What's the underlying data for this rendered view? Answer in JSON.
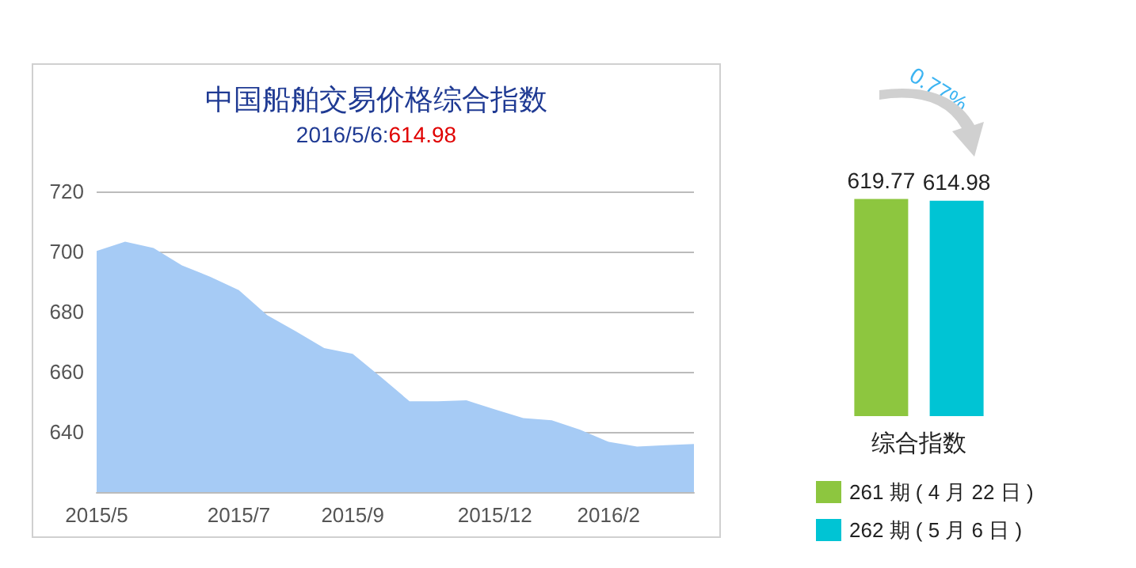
{
  "chart_data": [
    {
      "type": "area",
      "title": "中国船舶交易价格综合指数",
      "subtitle": "2016/5/6:614.98",
      "categories": [
        "2015/5",
        null,
        null,
        null,
        null,
        "2015/7",
        null,
        null,
        null,
        "2015/9",
        null,
        null,
        null,
        null,
        "2015/12",
        null,
        null,
        null,
        "2016/2",
        null,
        null,
        null
      ],
      "values": [
        700.2,
        703.3,
        701.2,
        695.4,
        691.6,
        687.2,
        678.8,
        673.5,
        667.9,
        666,
        658.2,
        650.2,
        650.2,
        650.5,
        647.5,
        644.6,
        643.9,
        640.7,
        636.7,
        635.1,
        635.6,
        636.0
      ],
      "color": "#a6cbf5",
      "ylim": [
        620,
        720
      ],
      "yticks": [
        640,
        660,
        680,
        700,
        720
      ],
      "grid": "y"
    },
    {
      "type": "bar",
      "categories": [
        "综合指数"
      ],
      "series": [
        {
          "name": "261 期 ( 4 月 22 日 )",
          "color": "#8dc63f",
          "values": [
            619.77
          ]
        },
        {
          "name": "262 期 ( 5 月 6 日 )",
          "color": "#00c4d4",
          "values": [
            614.98
          ]
        }
      ],
      "data_labels": true,
      "legend": "bottom",
      "annotations": [
        "0.77%"
      ]
    }
  ]
}
